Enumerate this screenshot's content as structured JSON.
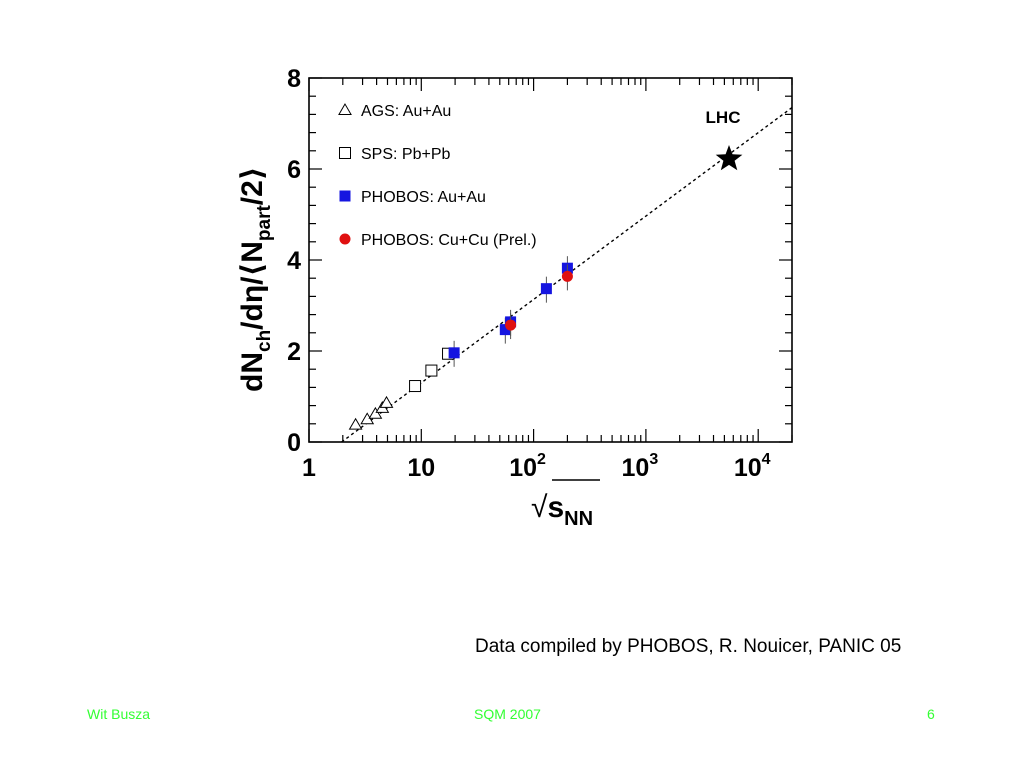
{
  "chart_data": {
    "type": "scatter",
    "x_scale": "log",
    "xlim": [
      1,
      20000
    ],
    "ylim": [
      0,
      8
    ],
    "xlabel_main": "√",
    "xlabel_var": "s",
    "xlabel_sub": "NN",
    "ylabel": {
      "a": "dN",
      "a_sub": "ch",
      "b": "/dη/⟨",
      "c": "N",
      "c_sub": "part",
      "d": "/2⟩"
    },
    "x_ticks": [
      {
        "value": 1,
        "label": "1"
      },
      {
        "value": 10,
        "label": "10"
      },
      {
        "value": 100,
        "label": "10",
        "exp": "2"
      },
      {
        "value": 1000,
        "label": "10",
        "exp": "3"
      },
      {
        "value": 10000,
        "label": "10",
        "exp": "4"
      }
    ],
    "y_ticks": [
      0,
      2,
      4,
      6,
      8
    ],
    "legend_placement": "top-left",
    "series": [
      {
        "name": "AGS: Au+Au",
        "marker": "triangle-open",
        "color": "#000000",
        "points": [
          [
            2.6,
            0.38
          ],
          [
            3.3,
            0.5
          ],
          [
            3.9,
            0.62
          ],
          [
            4.5,
            0.75
          ],
          [
            4.9,
            0.86
          ]
        ]
      },
      {
        "name": "SPS: Pb+Pb",
        "marker": "square-open",
        "color": "#000000",
        "points": [
          [
            8.8,
            1.23
          ],
          [
            12.3,
            1.57
          ],
          [
            17.3,
            1.94
          ]
        ]
      },
      {
        "name": "PHOBOS: Au+Au",
        "marker": "square-filled",
        "color": "#1515e0",
        "points": [
          [
            19.6,
            1.96
          ],
          [
            56,
            2.47
          ],
          [
            62.4,
            2.64
          ],
          [
            130,
            3.37
          ],
          [
            200,
            3.82
          ]
        ]
      },
      {
        "name": "PHOBOS: Cu+Cu (Prel.)",
        "marker": "circle-filled",
        "color": "#e01010",
        "points": [
          [
            62.4,
            2.57
          ],
          [
            200,
            3.64
          ]
        ]
      },
      {
        "name": "LHC",
        "marker": "star",
        "color": "#000000",
        "points": [
          [
            5500,
            6.22
          ]
        ]
      }
    ],
    "fit_line": {
      "style": "dashed",
      "x": [
        1.95,
        20000
      ],
      "y": [
        0,
        7.35
      ]
    }
  },
  "caption": "Data compiled by PHOBOS, R. Nouicer, PANIC 05",
  "footer": {
    "author": "Wit Busza",
    "event": "SQM 2007",
    "page": "6"
  }
}
